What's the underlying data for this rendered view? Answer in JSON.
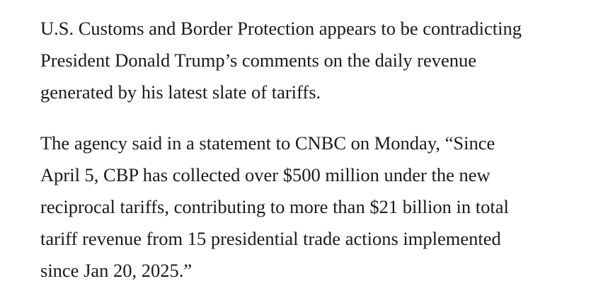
{
  "article": {
    "paragraphs": [
      {
        "lines": [
          "U.S. Customs and Border Protection appears to be contradicting",
          "President Donald Trump’s comments on the daily revenue",
          "generated by his latest slate of tariffs."
        ]
      },
      {
        "lines": [
          "The agency said in a statement to CNBC on Monday, “Since",
          "April 5, CBP has collected over $500 million under the new",
          "reciprocal tariffs, contributing to more than $21 billion in total",
          "tariff revenue from 15 presidential trade actions implemented",
          "since Jan 20, 2025.”"
        ]
      }
    ]
  }
}
